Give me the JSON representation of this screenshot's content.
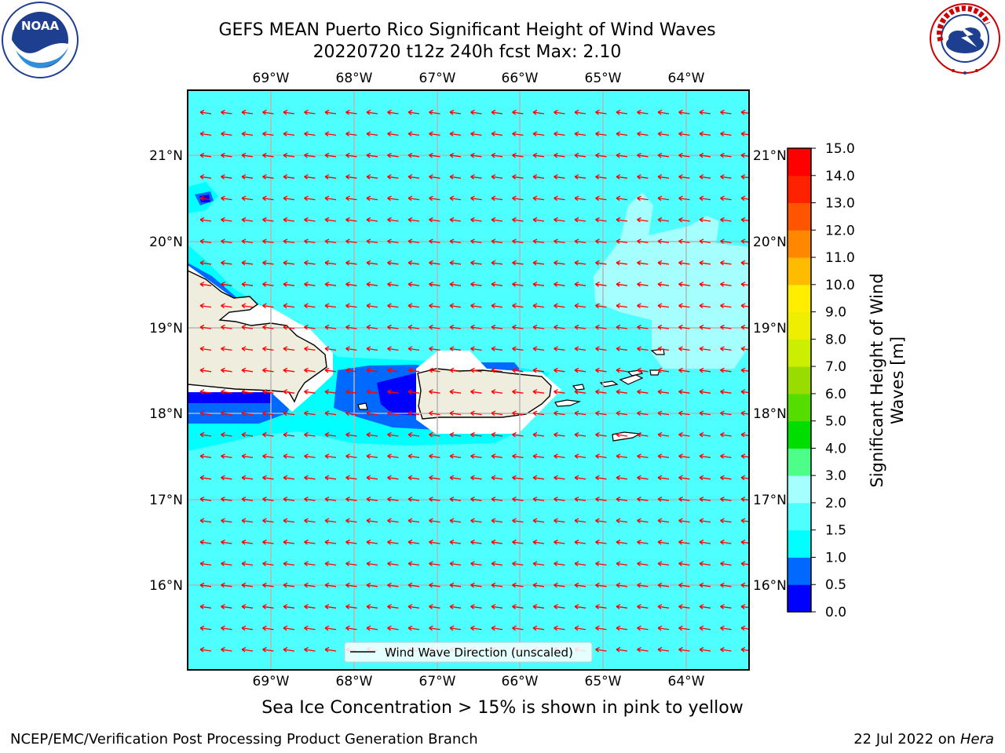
{
  "title": {
    "line1": "GEFS MEAN Puerto Rico Significant Height of Wind Waves",
    "line2": "20220720 t12z 240h fcst   Max: 2.10"
  },
  "logos": {
    "left": "NOAA",
    "right": "National Weather Service"
  },
  "map": {
    "lon_labels": [
      "69°W",
      "68°W",
      "67°W",
      "66°W",
      "65°W",
      "64°W"
    ],
    "lat_labels": [
      "21°N",
      "20°N",
      "19°N",
      "18°N",
      "17°N",
      "16°N"
    ],
    "legend_label": "Wind Wave Direction (unscaled)",
    "ocean_color": "#4dffff",
    "land_color": "#efedde",
    "arrow_color": "#ff0000"
  },
  "colorbar": {
    "label": "Significant Height of Wind Waves [m]",
    "label_line1": "Significant Height of Wind",
    "label_line2": "Waves [m]",
    "ticks": [
      "0.0",
      "0.5",
      "1.0",
      "1.5",
      "2.0",
      "3.0",
      "4.0",
      "5.0",
      "6.0",
      "7.0",
      "8.0",
      "9.0",
      "10.0",
      "11.0",
      "12.0",
      "13.0",
      "14.0",
      "15.0"
    ],
    "colors": [
      "#0000ff",
      "#0069ff",
      "#00ffff",
      "#4dffff",
      "#a6ffff",
      "#4dff88",
      "#00dd00",
      "#55dd00",
      "#99dd00",
      "#ccee00",
      "#eeee00",
      "#ffee00",
      "#ffbb00",
      "#ff8800",
      "#ff5500",
      "#ff2200",
      "#ff0000"
    ]
  },
  "footer": {
    "note": "Sea Ice Concentration > 15% is shown in pink to yellow",
    "left": "NCEP/EMC/Verification Post Processing Product Generation Branch",
    "date": "22 Jul 2022 on ",
    "machine": "Hera"
  }
}
